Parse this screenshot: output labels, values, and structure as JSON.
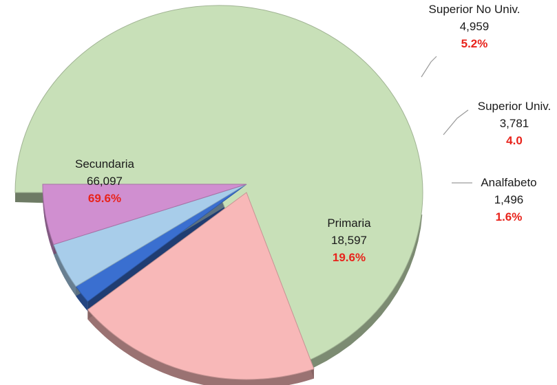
{
  "chart_data": {
    "type": "pie",
    "style": "3d-exploded",
    "slices": [
      {
        "name": "Secundaria",
        "value_label": "66,097",
        "value": 66097,
        "percent_label": "69.6%",
        "percent": 69.6,
        "color": "#c8e0b8"
      },
      {
        "name": "Primaria",
        "value_label": "18,597",
        "value": 18597,
        "percent_label": "19.6%",
        "percent": 19.6,
        "color": "#f8b8b8"
      },
      {
        "name": "Analfabeto",
        "value_label": "1,496",
        "value": 1496,
        "percent_label": "1.6%",
        "percent": 1.6,
        "color": "#3a6fd0"
      },
      {
        "name": "Superior Univ.",
        "value_label": "3,781",
        "value": 3781,
        "percent_label": "4.0",
        "percent": 4.0,
        "color": "#a8cdea"
      },
      {
        "name": "Superior No Univ.",
        "value_label": "4,959",
        "value": 4959,
        "percent_label": "5.2%",
        "percent": 5.2,
        "color": "#d08fd0"
      }
    ],
    "percent_color": "#e8231b",
    "leader_line_color": "#9a9a9a"
  }
}
